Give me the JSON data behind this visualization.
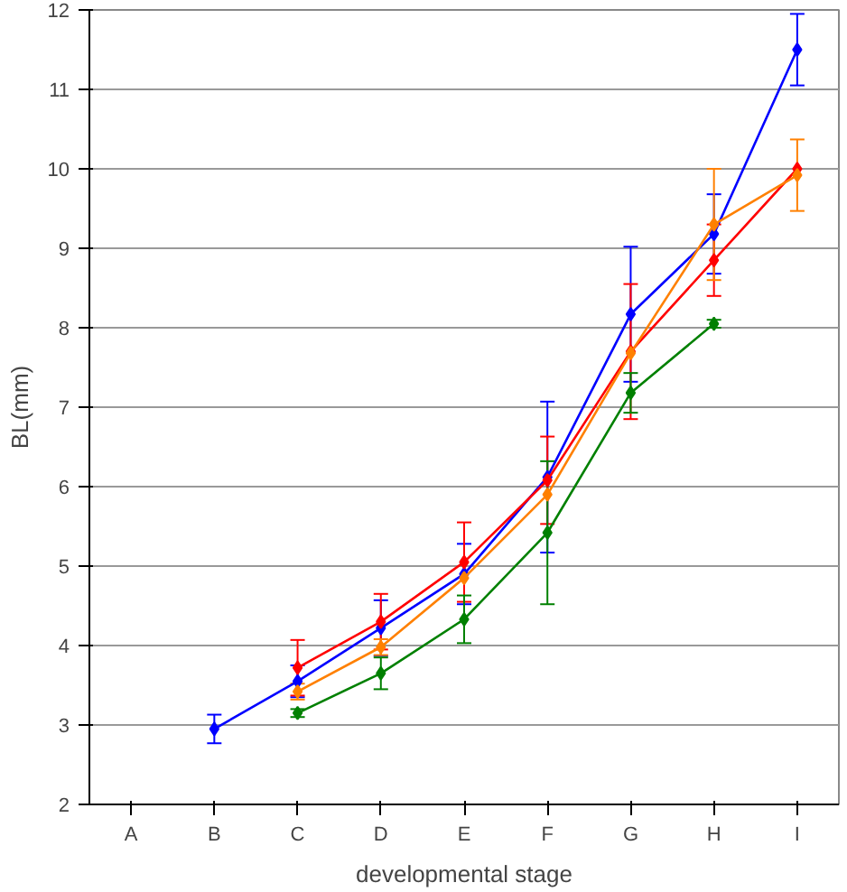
{
  "chart_data": {
    "type": "line",
    "xlabel": "developmental stage",
    "ylabel": "BL(mm)",
    "categories": [
      "A",
      "B",
      "C",
      "D",
      "E",
      "F",
      "G",
      "H",
      "I"
    ],
    "ylim": [
      2,
      12
    ],
    "yticks": [
      2,
      3,
      4,
      5,
      6,
      7,
      8,
      9,
      10,
      11,
      12
    ],
    "grid": "y",
    "marker": "diamond",
    "line_style": "solid",
    "series": [
      {
        "color": "#0000ff",
        "values": [
          null,
          2.95,
          3.55,
          4.22,
          4.9,
          6.12,
          8.17,
          9.18,
          11.5
        ],
        "errors": [
          null,
          0.18,
          0.2,
          0.35,
          0.38,
          0.95,
          0.85,
          0.5,
          0.45
        ]
      },
      {
        "color": "#ff0000",
        "values": [
          null,
          null,
          3.72,
          4.3,
          5.05,
          6.08,
          7.7,
          8.85,
          10.0
        ],
        "errors": [
          null,
          null,
          0.35,
          0.35,
          0.5,
          0.55,
          0.85,
          0.45,
          null
        ]
      },
      {
        "color": "#ff8000",
        "values": [
          null,
          null,
          3.42,
          3.98,
          4.85,
          5.9,
          7.68,
          9.3,
          9.92
        ],
        "errors": [
          null,
          null,
          0.1,
          0.1,
          null,
          null,
          null,
          0.7,
          0.45
        ]
      },
      {
        "color": "#008000",
        "values": [
          null,
          null,
          3.15,
          3.65,
          4.33,
          5.42,
          7.18,
          8.05,
          null
        ],
        "errors": [
          null,
          null,
          0.05,
          0.2,
          0.3,
          0.9,
          0.25,
          0.05,
          null
        ]
      }
    ]
  }
}
